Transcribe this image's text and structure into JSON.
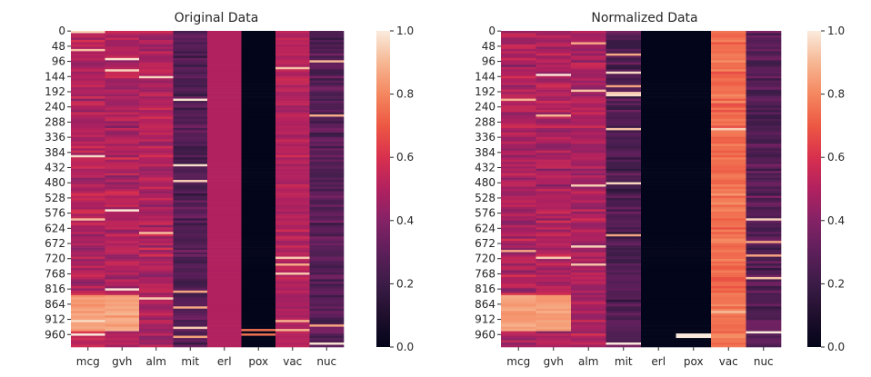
{
  "chart_data": [
    {
      "type": "heatmap",
      "title": "Original Data",
      "columns": [
        "mcg",
        "gvh",
        "alm",
        "mit",
        "erl",
        "pox",
        "vac",
        "nuc"
      ],
      "row_tick_labels": [
        "0",
        "48",
        "96",
        "144",
        "192",
        "240",
        "288",
        "336",
        "384",
        "432",
        "480",
        "528",
        "576",
        "624",
        "672",
        "720",
        "768",
        "816",
        "864",
        "912",
        "960"
      ],
      "row_count": 1000,
      "column_mean_values": [
        0.5,
        0.5,
        0.5,
        0.26,
        0.5,
        0.0,
        0.5,
        0.28
      ],
      "colorbar": {
        "vmin": 0.0,
        "vmax": 1.0,
        "ticks": [
          "0.0",
          "0.2",
          "0.4",
          "0.6",
          "0.8",
          "1.0"
        ],
        "colormap": "rocket"
      }
    },
    {
      "type": "heatmap",
      "title": "Normalized Data",
      "columns": [
        "mcg",
        "gvh",
        "alm",
        "mit",
        "erl",
        "pox",
        "vac",
        "nuc"
      ],
      "row_tick_labels": [
        "0",
        "48",
        "96",
        "144",
        "192",
        "240",
        "288",
        "336",
        "384",
        "432",
        "480",
        "528",
        "576",
        "624",
        "672",
        "720",
        "768",
        "816",
        "864",
        "912",
        "960"
      ],
      "row_count": 1000,
      "column_mean_values": [
        0.5,
        0.5,
        0.48,
        0.26,
        0.0,
        0.0,
        0.75,
        0.28
      ],
      "colorbar": {
        "vmin": 0.0,
        "vmax": 1.0,
        "ticks": [
          "0.0",
          "0.2",
          "0.4",
          "0.6",
          "0.8",
          "1.0"
        ],
        "colormap": "rocket"
      }
    }
  ]
}
